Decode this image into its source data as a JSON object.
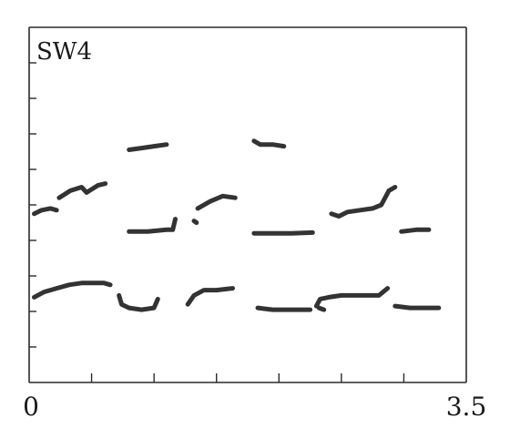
{
  "chart_data": {
    "type": "scatter",
    "title": "",
    "panel_label": "SW4",
    "xlabel": "",
    "ylabel": "",
    "xlim": [
      0,
      3.5
    ],
    "ylim": [
      0,
      10
    ],
    "x_tick_labels": [
      {
        "value": 0,
        "label": "0"
      },
      {
        "value": 3.5,
        "label": "3.5"
      }
    ],
    "x_ticks_unlabeled": [
      0.5,
      1.0,
      1.5,
      2.0,
      2.5,
      3.0
    ],
    "y_ticks_unlabeled": [
      1,
      2,
      3,
      4,
      5,
      6,
      7,
      8,
      9
    ],
    "grid": false,
    "series": [
      {
        "segments": [
          [
            [
              0.04,
              4.75
            ],
            [
              0.1,
              4.85
            ],
            [
              0.17,
              4.9
            ],
            [
              0.22,
              4.85
            ]
          ],
          [
            [
              0.24,
              5.2
            ],
            [
              0.33,
              5.4
            ],
            [
              0.42,
              5.5
            ],
            [
              0.46,
              5.35
            ],
            [
              0.55,
              5.55
            ],
            [
              0.61,
              5.6
            ]
          ],
          [
            [
              0.8,
              6.55
            ],
            [
              0.9,
              6.6
            ],
            [
              1.0,
              6.65
            ],
            [
              1.1,
              6.7
            ]
          ],
          [
            [
              1.35,
              4.9
            ],
            [
              1.45,
              5.1
            ],
            [
              1.55,
              5.25
            ],
            [
              1.65,
              5.2
            ]
          ],
          [
            [
              1.8,
              6.8
            ],
            [
              1.85,
              6.7
            ],
            [
              1.95,
              6.7
            ],
            [
              2.04,
              6.65
            ]
          ],
          [
            [
              2.42,
              4.75
            ],
            [
              2.48,
              4.68
            ],
            [
              2.55,
              4.8
            ],
            [
              2.65,
              4.85
            ],
            [
              2.75,
              4.9
            ],
            [
              2.82,
              5.0
            ],
            [
              2.88,
              5.4
            ],
            [
              2.93,
              5.5
            ]
          ],
          [
            [
              0.8,
              4.25
            ],
            [
              0.95,
              4.25
            ],
            [
              1.1,
              4.3
            ],
            [
              1.15,
              4.3
            ],
            [
              1.17,
              4.6
            ]
          ],
          [
            [
              1.32,
              4.55
            ],
            [
              1.34,
              4.5
            ]
          ],
          [
            [
              1.8,
              4.2
            ],
            [
              1.95,
              4.2
            ],
            [
              2.1,
              4.2
            ],
            [
              2.27,
              4.22
            ]
          ],
          [
            [
              2.98,
              4.25
            ],
            [
              3.1,
              4.3
            ],
            [
              3.2,
              4.3
            ]
          ],
          [
            [
              0.04,
              2.4
            ],
            [
              0.12,
              2.55
            ],
            [
              0.22,
              2.65
            ],
            [
              0.32,
              2.75
            ],
            [
              0.42,
              2.8
            ],
            [
              0.52,
              2.8
            ],
            [
              0.6,
              2.8
            ],
            [
              0.65,
              2.75
            ]
          ],
          [
            [
              0.72,
              2.45
            ],
            [
              0.74,
              2.2
            ],
            [
              0.8,
              2.1
            ],
            [
              0.9,
              2.05
            ],
            [
              1.0,
              2.1
            ],
            [
              1.03,
              2.35
            ]
          ],
          [
            [
              1.27,
              2.2
            ],
            [
              1.32,
              2.45
            ],
            [
              1.4,
              2.6
            ],
            [
              1.5,
              2.6
            ],
            [
              1.63,
              2.65
            ]
          ],
          [
            [
              1.83,
              2.1
            ],
            [
              1.95,
              2.05
            ],
            [
              2.1,
              2.05
            ],
            [
              2.25,
              2.05
            ]
          ],
          [
            [
              2.3,
              2.15
            ],
            [
              2.33,
              2.35
            ],
            [
              2.4,
              2.4
            ],
            [
              2.5,
              2.45
            ],
            [
              2.65,
              2.45
            ],
            [
              2.8,
              2.45
            ],
            [
              2.87,
              2.65
            ]
          ],
          [
            [
              2.32,
              2.1
            ],
            [
              2.36,
              2.05
            ]
          ],
          [
            [
              2.93,
              2.15
            ],
            [
              3.05,
              2.1
            ],
            [
              3.15,
              2.1
            ],
            [
              3.28,
              2.1
            ]
          ]
        ]
      }
    ]
  }
}
